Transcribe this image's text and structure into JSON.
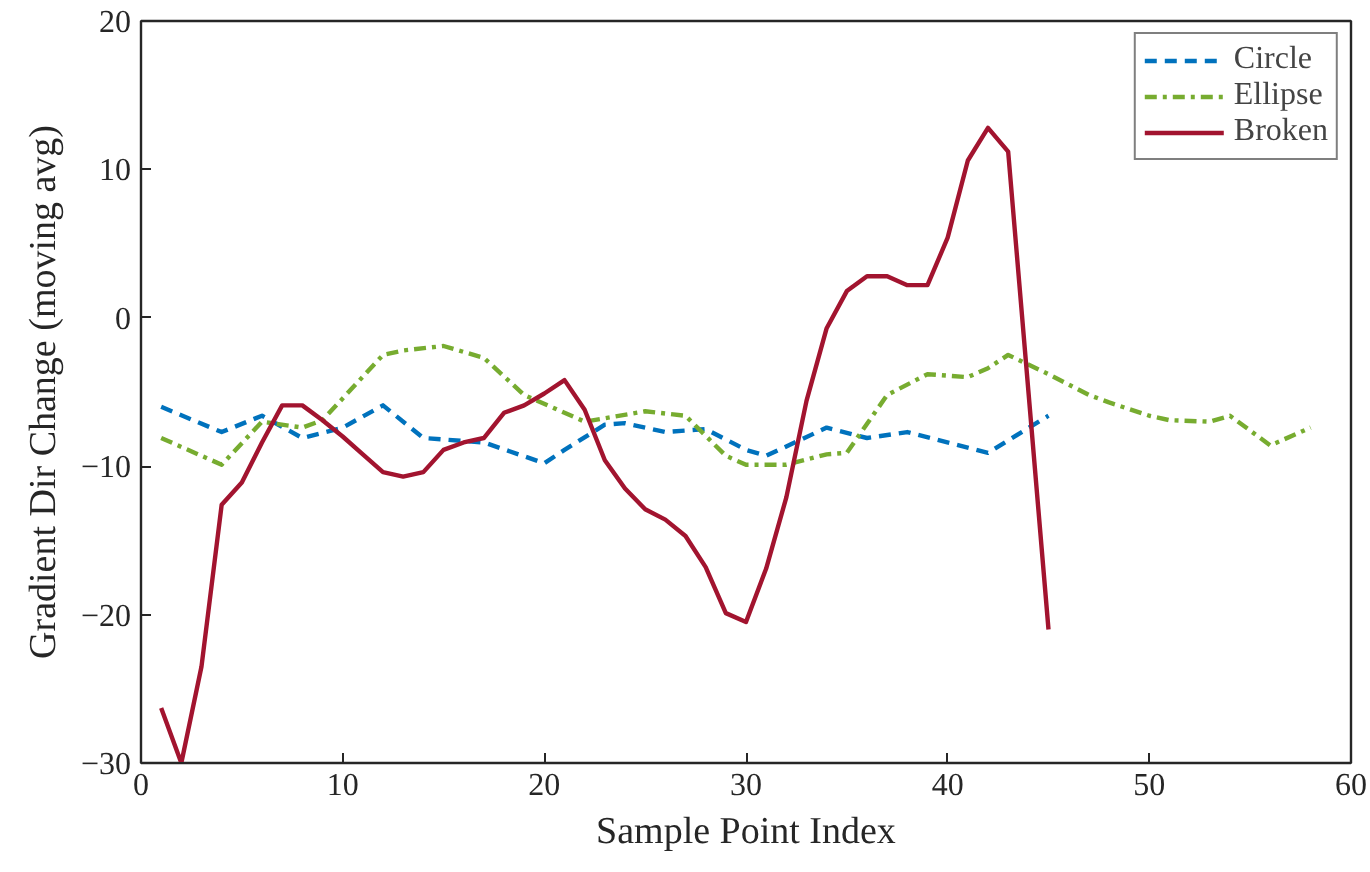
{
  "chart_data": {
    "type": "line",
    "xlabel": "Sample Point Index",
    "ylabel": "Gradient Dir Change (moving avg)",
    "xlim": [
      0,
      60
    ],
    "ylim": [
      -30,
      20
    ],
    "xticks": [
      0,
      10,
      20,
      30,
      40,
      50,
      60
    ],
    "yticks": [
      -30,
      -20,
      -10,
      0,
      10,
      20
    ],
    "grid": false,
    "legend": "top right",
    "marker": "none",
    "series": [
      {
        "name": "Circle",
        "color": "#0072bd",
        "line_style": "dashed",
        "x": [
          1,
          4,
          6,
          8,
          10,
          12,
          14,
          17,
          20,
          21,
          23,
          24,
          26,
          28,
          30,
          31,
          34,
          36,
          38,
          42,
          45
        ],
        "values": [
          -6.0,
          -7.7,
          -6.6,
          -8.1,
          -7.4,
          -5.9,
          -8.1,
          -8.4,
          -9.8,
          -8.9,
          -7.2,
          -7.1,
          -7.7,
          -7.5,
          -8.9,
          -9.3,
          -7.4,
          -8.1,
          -7.7,
          -9.1,
          -6.6
        ]
      },
      {
        "name": "Ellipse",
        "color": "#77ac30",
        "line_style": "dashdot",
        "x": [
          1,
          4,
          6,
          8,
          9,
          12,
          13,
          15,
          17,
          19,
          22,
          25,
          27,
          29,
          30,
          32,
          34,
          35,
          37,
          39,
          41,
          42,
          43,
          45,
          47,
          48,
          50,
          51,
          53,
          54,
          56,
          58
        ],
        "values": [
          -8.1,
          -9.9,
          -7.0,
          -7.4,
          -6.9,
          -2.5,
          -2.2,
          -1.9,
          -2.7,
          -5.2,
          -7.0,
          -6.3,
          -6.6,
          -9.3,
          -9.9,
          -9.9,
          -9.2,
          -9.1,
          -5.2,
          -3.8,
          -4.0,
          -3.4,
          -2.5,
          -3.8,
          -5.2,
          -5.7,
          -6.6,
          -6.9,
          -7.0,
          -6.6,
          -8.6,
          -7.4
        ]
      },
      {
        "name": "Broken",
        "color": "#a2142f",
        "line_style": "solid",
        "x": [
          1,
          2,
          3,
          4,
          5,
          6,
          7,
          8,
          9,
          10,
          11,
          12,
          13,
          14,
          15,
          16,
          17,
          18,
          19,
          20,
          21,
          22,
          23,
          24,
          25,
          26,
          27,
          28,
          29,
          30,
          31,
          32,
          33,
          34,
          35,
          36,
          37,
          38,
          39,
          40,
          41,
          42,
          43,
          44,
          45
        ],
        "values": [
          -26.3,
          -30,
          -23.5,
          -12.6,
          -11.1,
          -8.4,
          -5.9,
          -5.9,
          -6.9,
          -8.0,
          -9.2,
          -10.4,
          -10.7,
          -10.4,
          -8.9,
          -8.4,
          -8.1,
          -6.4,
          -5.9,
          -5.1,
          -4.2,
          -6.2,
          -9.6,
          -11.5,
          -12.9,
          -13.6,
          -14.7,
          -16.8,
          -19.9,
          -20.5,
          -16.9,
          -12.1,
          -5.6,
          -0.7,
          1.8,
          2.8,
          2.8,
          2.2,
          2.2,
          5.4,
          10.6,
          12.8,
          11.2,
          -4.9,
          -21.0
        ]
      }
    ]
  }
}
